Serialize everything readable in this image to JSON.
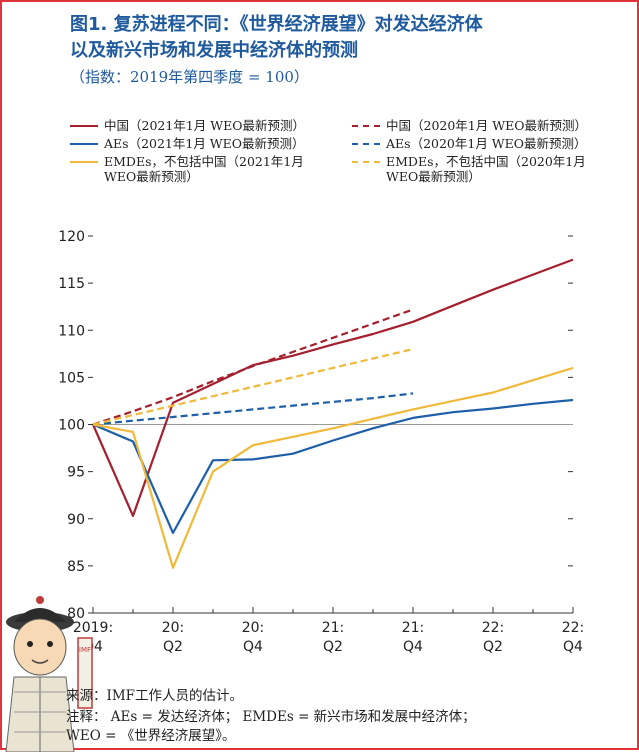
{
  "title_line1": "图1. 复苏进程不同：《世界经济展望》对发达经济体",
  "title_line2": "以及新兴市场和发展中经济体的预测",
  "subtitle": "（指数：2019年第四季度 = 100）",
  "legend": [
    {
      "label": "中国（2021年1月 WEO最新预测）",
      "color": "#a4202e",
      "dash": false
    },
    {
      "label": "中国（2020年1月 WEO最新预测）",
      "color": "#a4202e",
      "dash": true
    },
    {
      "label": "AEs（2021年1月 WEO最新预测）",
      "color": "#1d5fa8",
      "dash": false
    },
    {
      "label": "AEs（2020年1月 WEO最新预测）",
      "color": "#1d5fa8",
      "dash": true
    },
    {
      "label_line1": "EMDEs，不包括中国（2021年1月",
      "label_line2": "WEO最新预测）",
      "color": "#f0b93a",
      "dash": false
    },
    {
      "label_line1": "EMDEs，不包括中国（2020年1月",
      "label_line2": "WEO最新预测）",
      "color": "#f0b93a",
      "dash": true
    }
  ],
  "chart_data": {
    "type": "line",
    "x_ticks": [
      {
        "l1": "2019:",
        "l2": "Q4"
      },
      {
        "l1": "20:",
        "l2": "Q2"
      },
      {
        "l1": "20:",
        "l2": "Q4"
      },
      {
        "l1": "21:",
        "l2": "Q2"
      },
      {
        "l1": "21:",
        "l2": "Q4"
      },
      {
        "l1": "22:",
        "l2": "Q2"
      },
      {
        "l1": "22:",
        "l2": "Q4"
      }
    ],
    "x_quarters": [
      "2019:Q4",
      "2020:Q1",
      "2020:Q2",
      "2020:Q3",
      "2020:Q4",
      "2021:Q1",
      "2021:Q2",
      "2021:Q3",
      "2021:Q4",
      "2022:Q1",
      "2022:Q2",
      "2022:Q3",
      "2022:Q4"
    ],
    "ylim": [
      80,
      120
    ],
    "yticks": [
      80,
      85,
      90,
      95,
      100,
      105,
      110,
      115,
      120
    ],
    "series": [
      {
        "name": "中国（2021年1月 WEO最新预测）",
        "color": "#a4202e",
        "dash": false,
        "x": [
          0,
          1,
          2,
          3,
          4,
          5,
          6,
          7,
          8,
          9,
          10,
          11,
          12
        ],
        "values": [
          100,
          90.3,
          102.3,
          104.3,
          106.3,
          107.3,
          108.5,
          109.6,
          110.9,
          112.6,
          114.3,
          115.9,
          117.5
        ]
      },
      {
        "name": "中国（2020年1月 WEO最新预测）",
        "color": "#a4202e",
        "dash": true,
        "x": [
          0,
          1,
          2,
          3,
          4,
          5,
          6,
          7,
          8
        ],
        "values": [
          100,
          101.4,
          102.9,
          104.6,
          106.2,
          107.7,
          109.2,
          110.7,
          112.2
        ]
      },
      {
        "name": "AEs（2021年1月 WEO最新预测）",
        "color": "#1d5fa8",
        "dash": false,
        "x": [
          0,
          1,
          2,
          3,
          4,
          5,
          6,
          7,
          8,
          9,
          10,
          11,
          12
        ],
        "values": [
          100,
          98.2,
          88.5,
          96.2,
          96.3,
          96.9,
          98.3,
          99.6,
          100.7,
          101.3,
          101.7,
          102.2,
          102.6
        ]
      },
      {
        "name": "AEs（2020年1月 WEO最新预测）",
        "color": "#1d5fa8",
        "dash": true,
        "x": [
          0,
          1,
          2,
          3,
          4,
          5,
          6,
          7,
          8
        ],
        "values": [
          100,
          100.4,
          100.8,
          101.2,
          101.6,
          102.0,
          102.4,
          102.8,
          103.3
        ]
      },
      {
        "name": "EMDEs，不包括中国（2021年1月WEO最新预测）",
        "color": "#f0b93a",
        "dash": false,
        "x": [
          0,
          1,
          2,
          3,
          4,
          5,
          6,
          7,
          8,
          9,
          10,
          11,
          12
        ],
        "values": [
          100,
          99.2,
          84.8,
          95.0,
          97.8,
          98.7,
          99.6,
          100.6,
          101.6,
          102.5,
          103.4,
          104.7,
          106.0
        ]
      },
      {
        "name": "EMDEs，不包括中国（2020年1月WEO最新预测）",
        "color": "#f0b93a",
        "dash": true,
        "x": [
          0,
          1,
          2,
          3,
          4,
          5,
          6,
          7,
          8
        ],
        "values": [
          100,
          101.0,
          102.0,
          103.0,
          104.0,
          105.0,
          106.0,
          107.0,
          108.0
        ]
      }
    ]
  },
  "footnotes": {
    "source": "来源：IMF工作人员的估计。",
    "note": "注释： AEs = 发达经济体； EMDEs = 新兴市场和发展中经济体；",
    "weo": "WEO = 《世界经济展望》。"
  },
  "mascot_badge": "IMF"
}
